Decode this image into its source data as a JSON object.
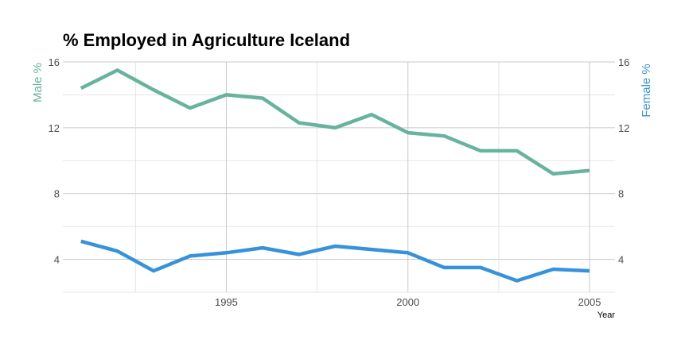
{
  "chart_data": {
    "type": "line",
    "title": "% Employed in Agriculture Iceland",
    "xlabel": "Year",
    "ylabel_left": "Male %",
    "ylabel_right": "Female %",
    "x": [
      1991,
      1992,
      1993,
      1994,
      1995,
      1996,
      1997,
      1998,
      1999,
      2000,
      2001,
      2002,
      2003,
      2004,
      2005
    ],
    "xlim": [
      1990.5,
      2005.7
    ],
    "ylim": [
      2,
      16
    ],
    "x_ticks": [
      1995,
      2000,
      2005
    ],
    "x_tick_labels": [
      "1995",
      "2000",
      "2005"
    ],
    "y_ticks": [
      4,
      8,
      12,
      16
    ],
    "y_tick_labels": [
      "4",
      "8",
      "12",
      "16"
    ],
    "grid": true,
    "series": [
      {
        "name": "Male %",
        "color": "#66b39e",
        "axis": "left",
        "values": [
          14.4,
          15.5,
          14.3,
          13.2,
          14.0,
          13.8,
          12.3,
          12.0,
          12.8,
          11.7,
          11.5,
          10.6,
          10.6,
          9.2,
          9.4
        ]
      },
      {
        "name": "Female %",
        "color": "#3692db",
        "axis": "right",
        "values": [
          5.1,
          4.5,
          3.3,
          4.2,
          4.4,
          4.7,
          4.3,
          4.8,
          4.6,
          4.4,
          3.5,
          3.5,
          2.7,
          3.4,
          3.3
        ]
      }
    ]
  }
}
